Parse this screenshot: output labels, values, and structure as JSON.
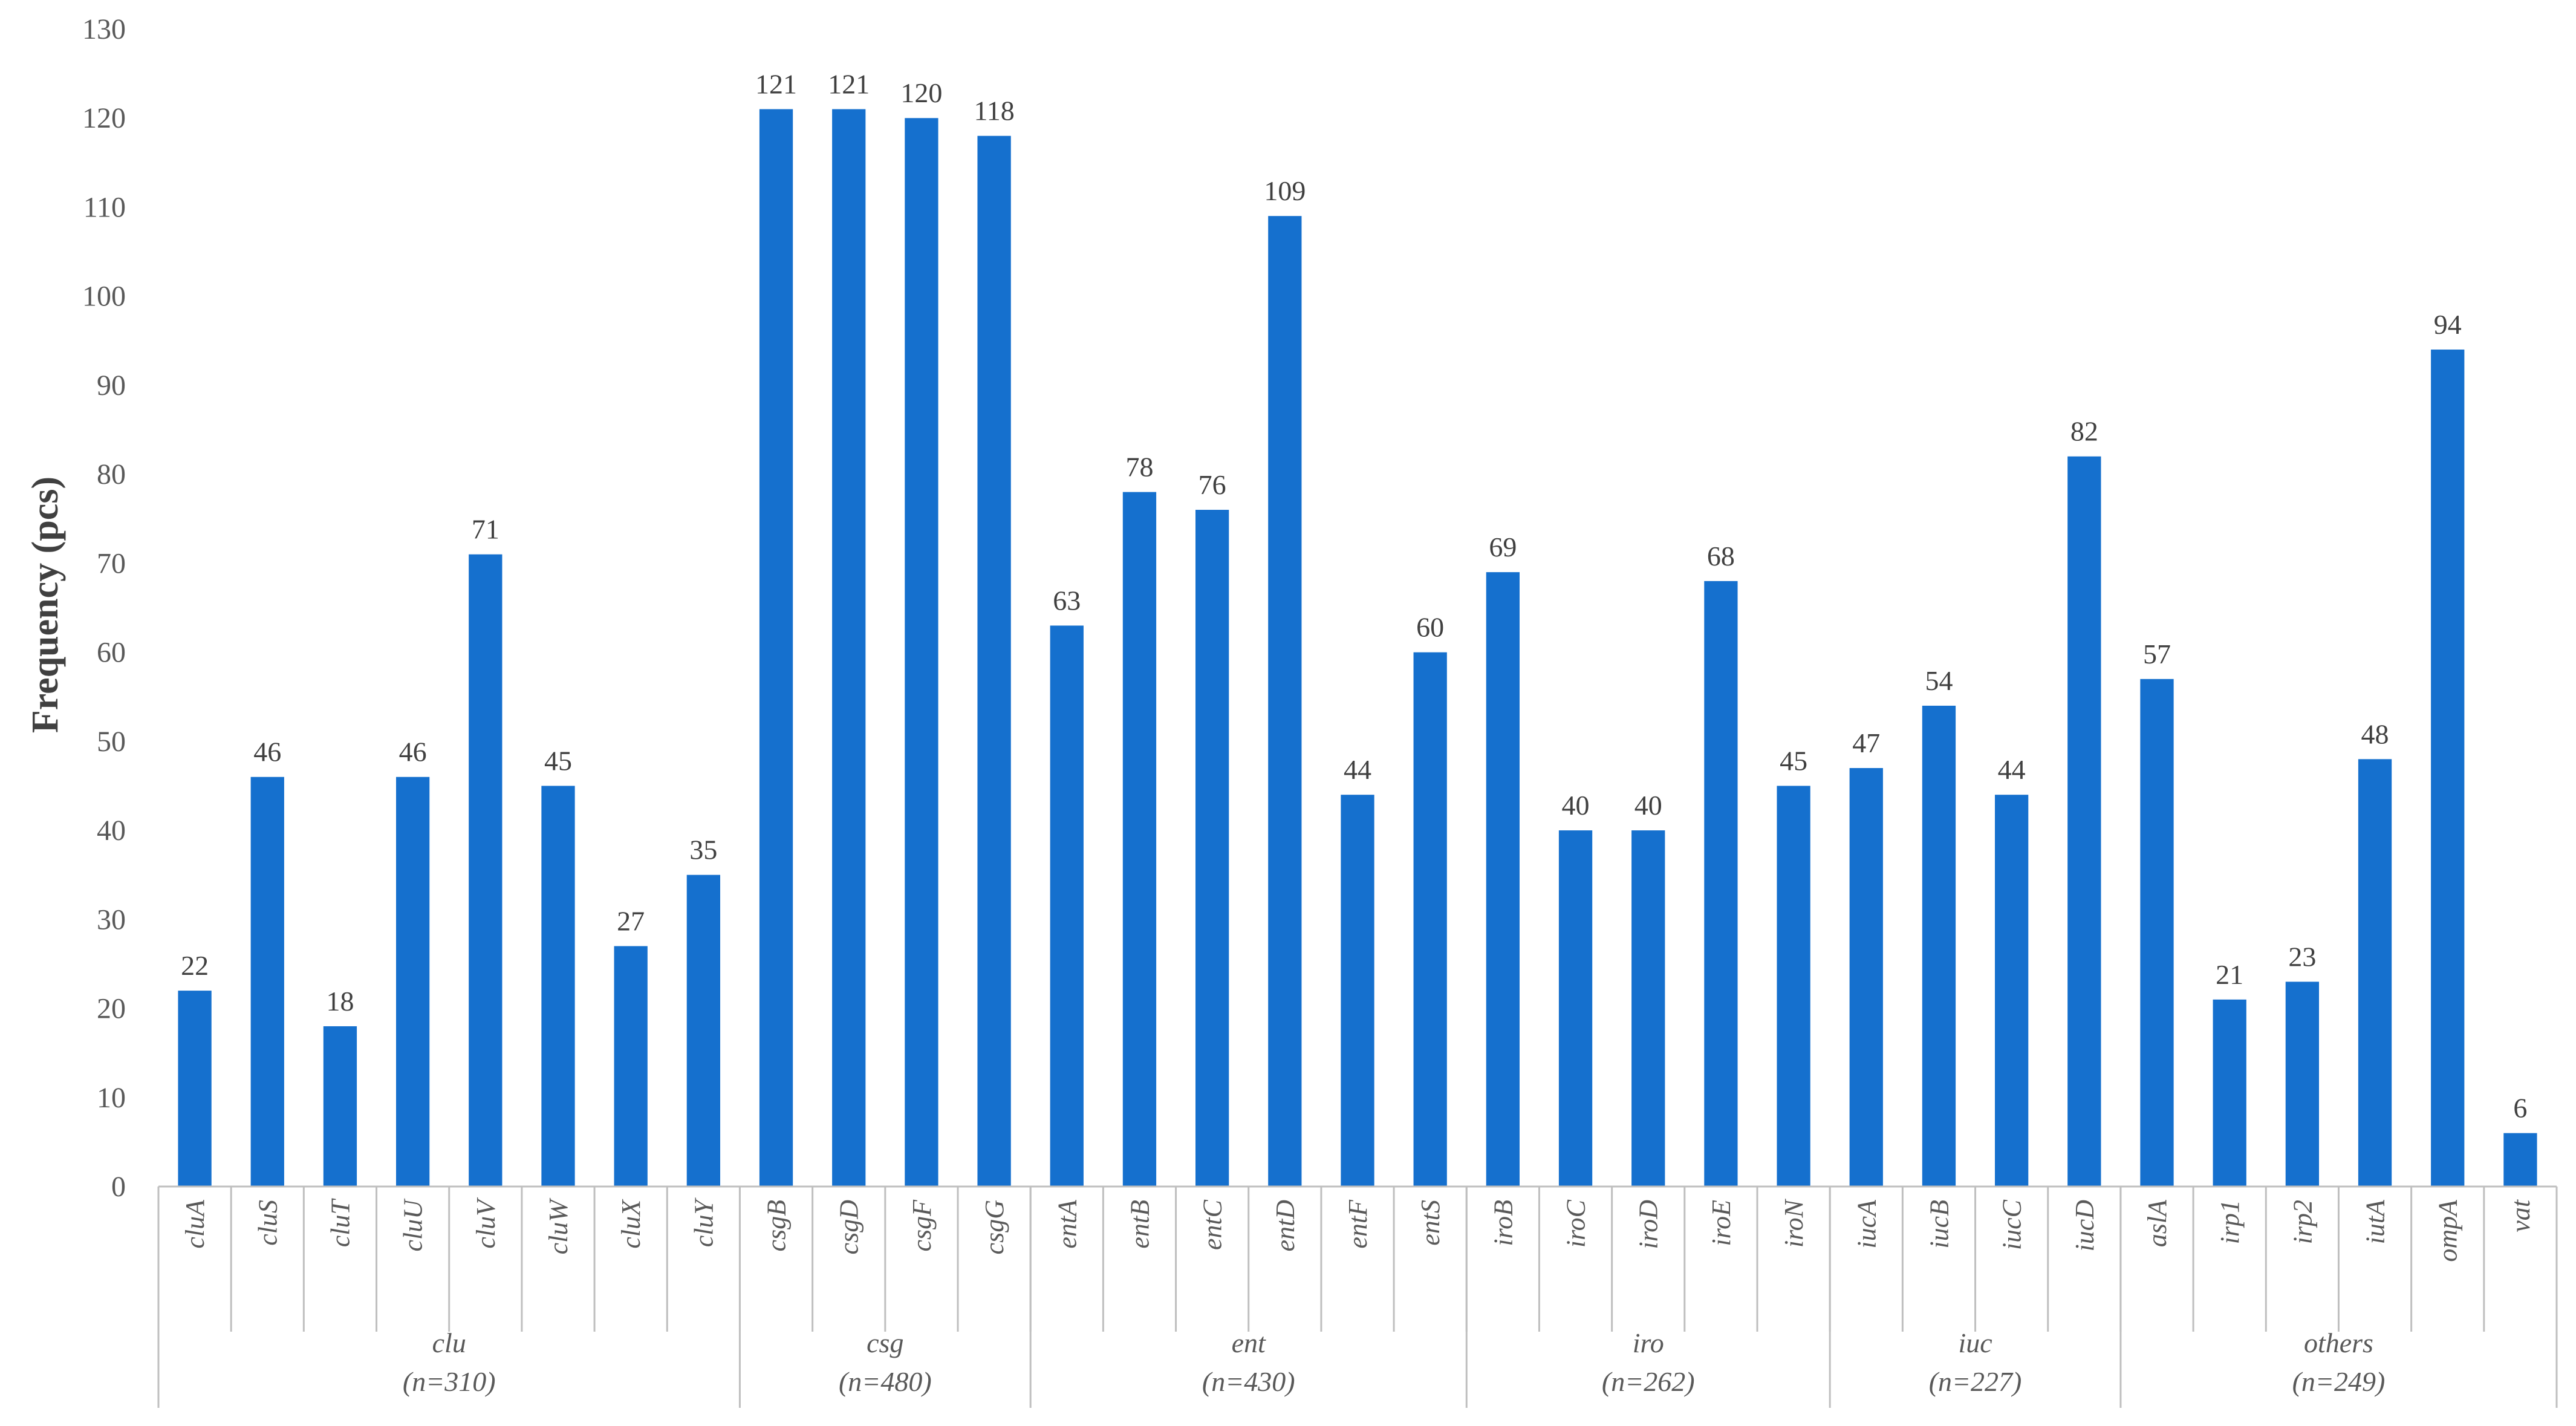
{
  "chart_data": {
    "type": "bar",
    "ylabel": "Frequency (pcs)",
    "xlabel": "",
    "ylim": [
      0,
      130
    ],
    "y_ticks": [
      "0",
      "10",
      "20",
      "30",
      "40",
      "50",
      "60",
      "70",
      "80",
      "90",
      "100",
      "110",
      "120",
      "130"
    ],
    "grid": false,
    "bar_color": "#1570CE",
    "categories": [
      "cluA",
      "cluS",
      "cluT",
      "cluU",
      "cluV",
      "cluW",
      "cluX",
      "cluY",
      "csgB",
      "csgD",
      "csgF",
      "csgG",
      "entA",
      "entB",
      "entC",
      "entD",
      "entF",
      "entS",
      "iroB",
      "iroC",
      "iroD",
      "iroE",
      "iroN",
      "iucA",
      "iucB",
      "iucC",
      "iucD",
      "aslA",
      "irp1",
      "irp2",
      "iutA",
      "ompA",
      "vat"
    ],
    "values": [
      22,
      46,
      18,
      46,
      71,
      45,
      27,
      35,
      121,
      121,
      120,
      118,
      63,
      78,
      76,
      109,
      44,
      60,
      69,
      40,
      40,
      68,
      45,
      47,
      54,
      44,
      82,
      57,
      21,
      23,
      48,
      94,
      6
    ],
    "data_labels": [
      "22",
      "46",
      "18",
      "46",
      "71",
      "45",
      "27",
      "35",
      "121",
      "121",
      "120",
      "118",
      "63",
      "78",
      "76",
      "109",
      "44",
      "60",
      "69",
      "40",
      "40",
      "68",
      "45",
      "47",
      "54",
      "44",
      "82",
      "57",
      "21",
      "23",
      "48",
      "94",
      "6"
    ],
    "groups": [
      {
        "name": "clu",
        "n_label": "(n=310)",
        "count": 8
      },
      {
        "name": "csg",
        "n_label": "(n=480)",
        "count": 4
      },
      {
        "name": "ent",
        "n_label": "(n=430)",
        "count": 6
      },
      {
        "name": "iro",
        "n_label": "(n=262)",
        "count": 5
      },
      {
        "name": "iuc",
        "n_label": "(n=227)",
        "count": 4
      },
      {
        "name": "others",
        "n_label": "(n=249)",
        "count": 6
      }
    ]
  }
}
